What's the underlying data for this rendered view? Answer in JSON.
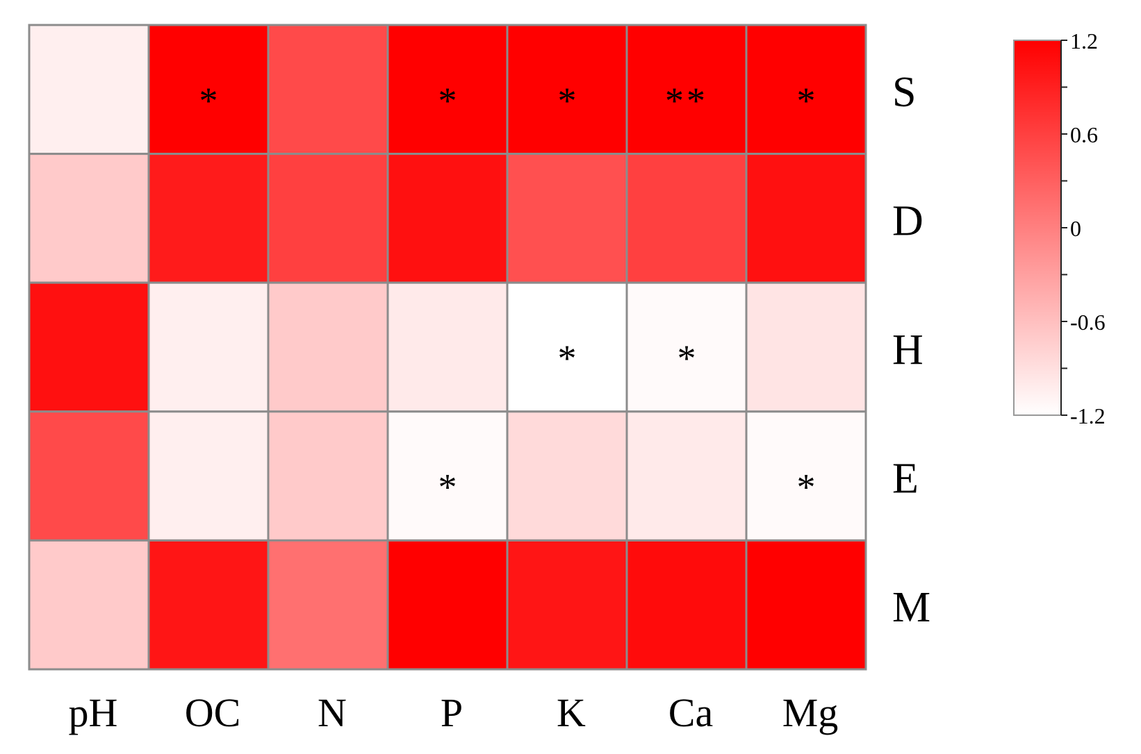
{
  "chart_data": {
    "type": "heatmap",
    "title": "",
    "xlabel": "",
    "ylabel": "",
    "columns": [
      "pH",
      "OC",
      "N",
      "P",
      "K",
      "Ca",
      "Mg"
    ],
    "rows": [
      "S",
      "D",
      "H",
      "E",
      "M"
    ],
    "values": [
      [
        -1.05,
        1.2,
        0.5,
        1.2,
        1.2,
        1.2,
        1.2
      ],
      [
        -0.7,
        0.95,
        0.6,
        1.05,
        0.45,
        0.6,
        1.05
      ],
      [
        1.05,
        -1.05,
        -0.7,
        -1.0,
        -1.2,
        -1.15,
        -0.95
      ],
      [
        0.5,
        -1.05,
        -0.7,
        -1.15,
        -0.85,
        -1.0,
        -1.15
      ],
      [
        -0.7,
        1.0,
        0.15,
        1.2,
        1.0,
        1.1,
        1.2
      ]
    ],
    "significance": [
      [
        "",
        "*",
        "",
        "*",
        "*",
        "**",
        "*"
      ],
      [
        "",
        "",
        "",
        "",
        "",
        "",
        ""
      ],
      [
        "",
        "",
        "",
        "",
        "*",
        "*",
        ""
      ],
      [
        "",
        "",
        "",
        "*",
        "",
        "",
        "*"
      ],
      [
        "",
        "",
        "",
        "",
        "",
        "",
        ""
      ]
    ],
    "colorbar": {
      "range": [
        -1.2,
        1.2
      ],
      "tick_labels": [
        "1.2",
        "0.6",
        "0",
        "-0.6",
        "-1.2"
      ],
      "tick_values": [
        1.2,
        0.6,
        0,
        -0.6,
        -1.2
      ],
      "low_color": "#ffffff",
      "high_color": "#ff0000"
    }
  }
}
